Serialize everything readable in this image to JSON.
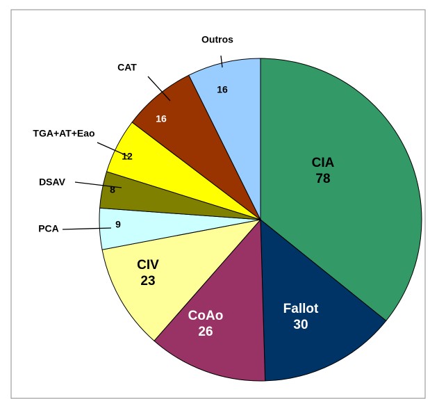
{
  "chart_data": {
    "type": "pie",
    "categories": [
      "CIA",
      "Fallot",
      "CoAo",
      "CIV",
      "PCA",
      "DSAV",
      "TGA+AT+Eao",
      "CAT",
      "Outros"
    ],
    "values": [
      78,
      30,
      26,
      23,
      9,
      8,
      12,
      16,
      16
    ],
    "colors": [
      "#339966",
      "#003366",
      "#993366",
      "#ffff99",
      "#ccffff",
      "#808000",
      "#ffff00",
      "#993300",
      "#99ccff"
    ]
  }
}
